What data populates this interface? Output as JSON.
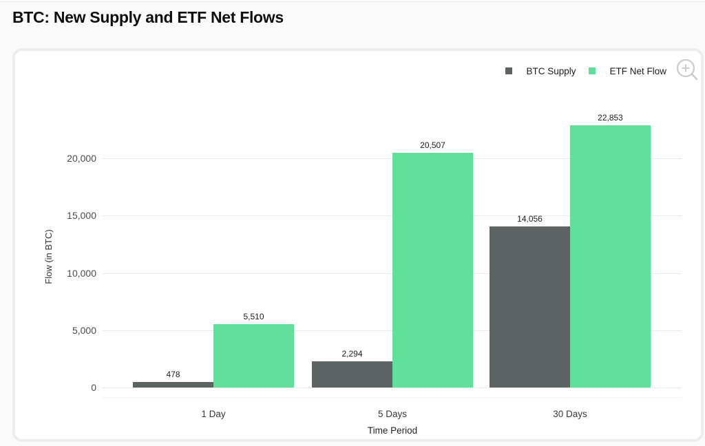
{
  "page": {
    "title": "BTC: New Supply and ETF Net Flows"
  },
  "ui": {
    "page_bg": "#fbfbfb",
    "panel_bg": "#ffffff",
    "panel_border": "#ededed",
    "grid_color": "#e9e9e9",
    "zoom_icon": "magnifier-plus-icon",
    "zoom_icon_color": "#cbcbcb",
    "title_color": "#0e0e0e"
  },
  "chart_data": {
    "type": "bar",
    "title": "BTC: New Supply and ETF Net Flows",
    "categories": [
      "1 Day",
      "5 Days",
      "30 Days"
    ],
    "series": [
      {
        "name": "BTC Supply",
        "color": "#5d6262",
        "values": [
          478,
          2294,
          14056
        ]
      },
      {
        "name": "ETF Net Flow",
        "color": "#5fdf99",
        "values": [
          5510,
          20507,
          22853
        ]
      }
    ],
    "value_labels": [
      [
        "478",
        "2,294",
        "14,056"
      ],
      [
        "5,510",
        "20,507",
        "22,853"
      ]
    ],
    "xlabel": "Time Period",
    "ylabel": "Flow (in BTC)",
    "ylim": [
      0,
      20000
    ],
    "yticks": [
      0,
      5000,
      10000,
      15000,
      20000
    ],
    "ytick_labels": [
      "0",
      "5,000",
      "10,000",
      "15,000",
      "20,000"
    ],
    "grid": true,
    "legend_position": "top-right",
    "label_color": "#1b1b1b"
  }
}
